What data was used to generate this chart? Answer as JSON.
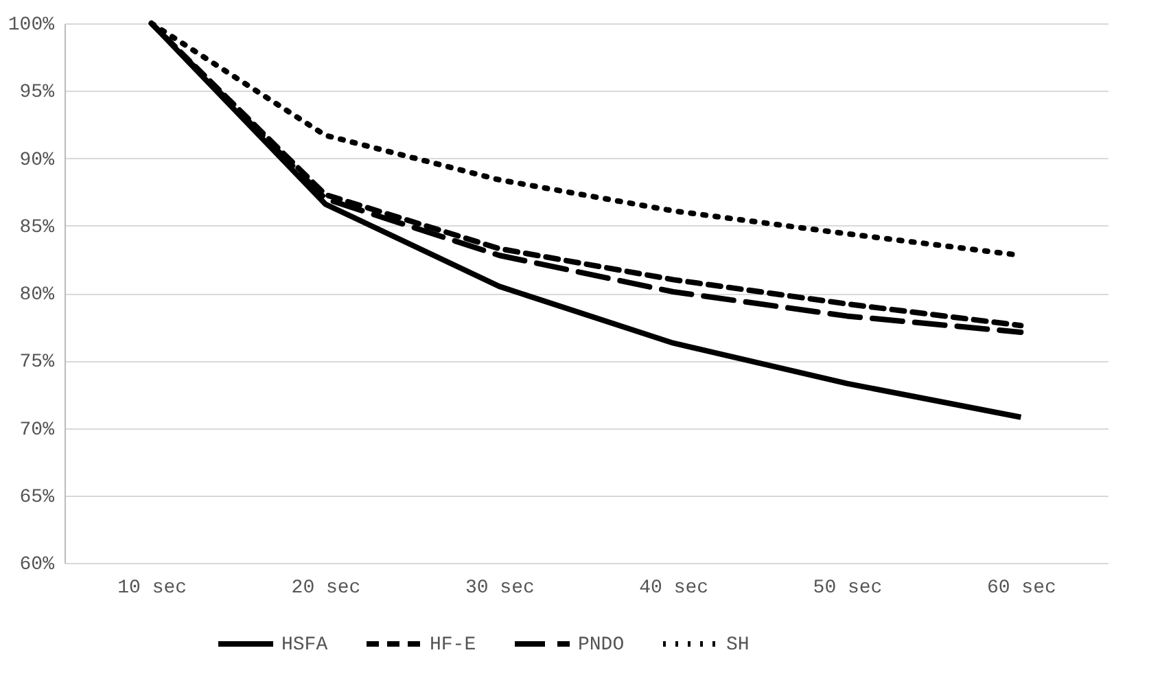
{
  "chart_data": {
    "type": "line",
    "categories": [
      "10 sec",
      "20 sec",
      "30 sec",
      "40 sec",
      "50 sec",
      "60 sec"
    ],
    "series": [
      {
        "name": "HSFA",
        "color": "#000000",
        "line_style": "solid",
        "values": [
          100,
          86.6,
          80.5,
          76.3,
          73.3,
          70.8
        ]
      },
      {
        "name": "HF-E",
        "color": "#000000",
        "line_style": "dashed",
        "values": [
          100,
          87.3,
          83.3,
          81.0,
          79.2,
          77.6
        ]
      },
      {
        "name": "PNDO",
        "color": "#000000",
        "line_style": "dashed",
        "values": [
          100,
          87.0,
          82.8,
          80.1,
          78.3,
          77.1
        ]
      },
      {
        "name": "SH",
        "color": "#000000",
        "line_style": "dotted",
        "values": [
          100,
          91.7,
          88.4,
          86.1,
          84.4,
          82.8
        ]
      }
    ],
    "ylim": [
      60,
      100
    ],
    "yticks": [
      {
        "value": 60,
        "label": "60%"
      },
      {
        "value": 65,
        "label": "65%"
      },
      {
        "value": 70,
        "label": "70%"
      },
      {
        "value": 75,
        "label": "75%"
      },
      {
        "value": 80,
        "label": "80%"
      },
      {
        "value": 85,
        "label": "85%"
      },
      {
        "value": 90,
        "label": "90%"
      },
      {
        "value": 95,
        "label": "95%"
      },
      {
        "value": 100,
        "label": "100%"
      }
    ],
    "grid": "y",
    "legend": "bottom",
    "marker": "none"
  }
}
